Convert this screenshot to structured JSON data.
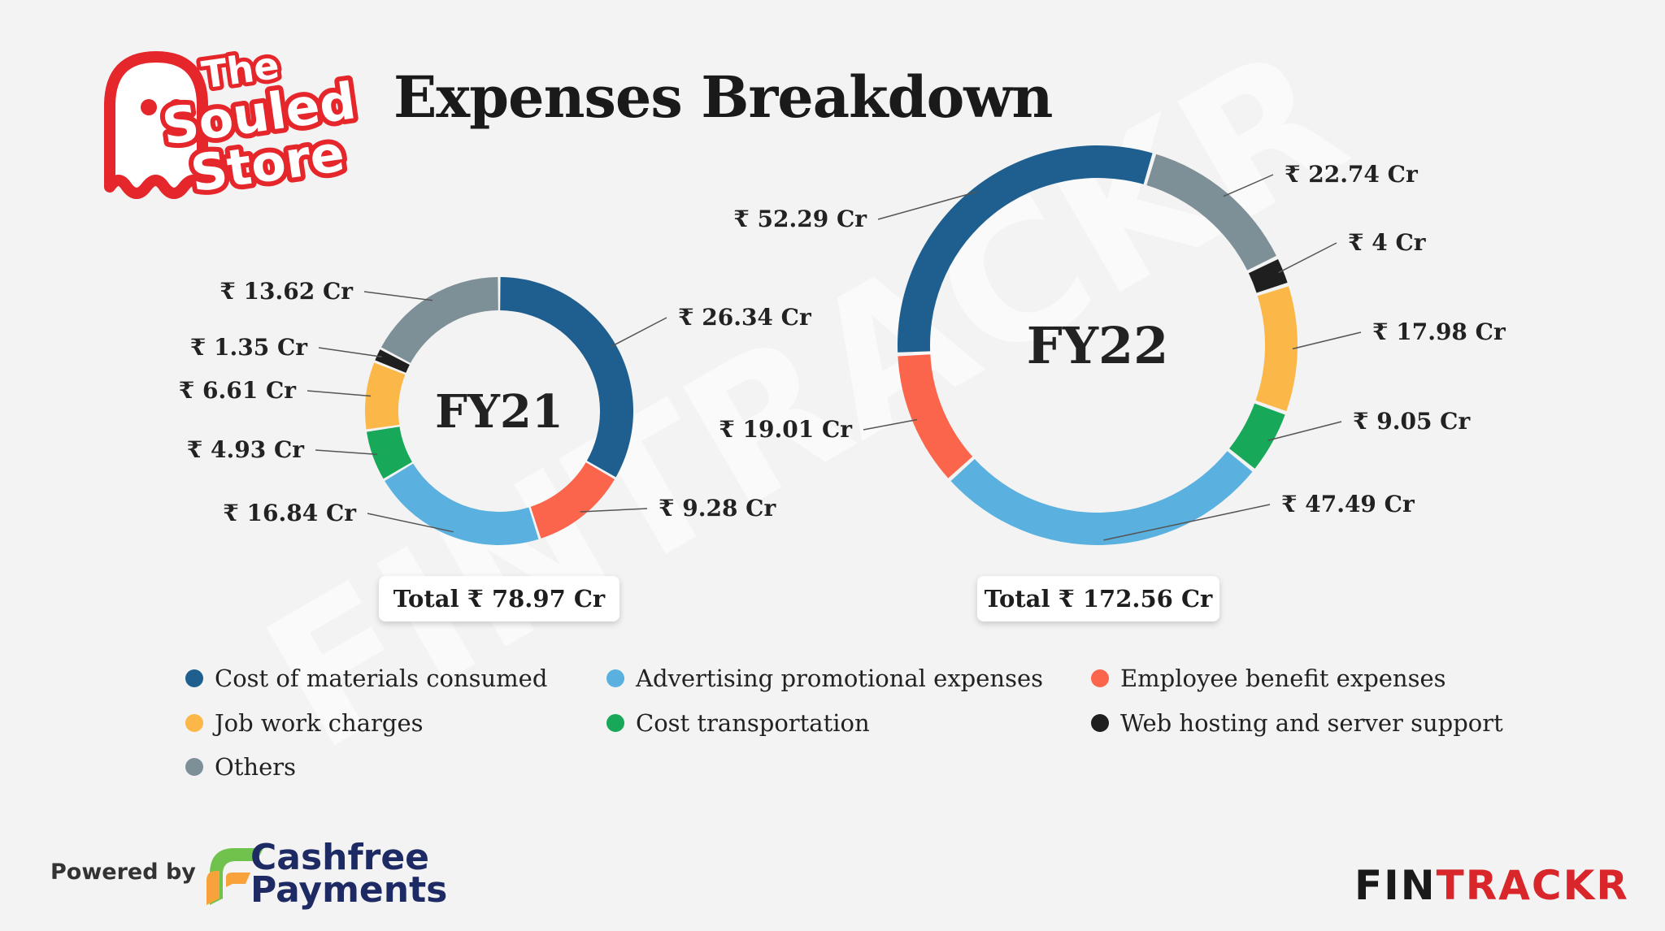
{
  "page": {
    "title": "Expenses Breakdown"
  },
  "brand": {
    "logo_line1": "The",
    "logo_line2": "Souled",
    "logo_line3": "Store",
    "logo_color": "#e5262b"
  },
  "watermark": "FINTRACKR",
  "legend": [
    {
      "label": "Cost of materials consumed",
      "color": "#1f5f8f"
    },
    {
      "label": "Advertising promotional expenses",
      "color": "#5ab0de"
    },
    {
      "label": "Employee benefit expenses",
      "color": "#fb654c"
    },
    {
      "label": "Job work charges",
      "color": "#fbb848"
    },
    {
      "label": "Cost transportation",
      "color": "#17a85a"
    },
    {
      "label": "Web hosting and server support",
      "color": "#1f1f1f"
    },
    {
      "label": "Others",
      "color": "#7e9097"
    }
  ],
  "chart_data": [
    {
      "type": "pie",
      "title": "FY21",
      "total_label": "Total ₹ 78.97 Cr",
      "unit": "₹ Cr",
      "slices": [
        {
          "name": "Cost of materials consumed",
          "value": 26.34,
          "label": "₹ 26.34 Cr"
        },
        {
          "name": "Employee benefit expenses",
          "value": 9.28,
          "label": "₹ 9.28 Cr"
        },
        {
          "name": "Advertising promotional expenses",
          "value": 16.84,
          "label": "₹ 16.84 Cr"
        },
        {
          "name": "Cost transportation",
          "value": 4.93,
          "label": "₹ 4.93 Cr"
        },
        {
          "name": "Job work charges",
          "value": 6.61,
          "label": "₹ 6.61 Cr"
        },
        {
          "name": "Web hosting and server support",
          "value": 1.35,
          "label": "₹ 1.35 Cr"
        },
        {
          "name": "Others",
          "value": 13.62,
          "label": "₹ 13.62 Cr"
        }
      ]
    },
    {
      "type": "pie",
      "title": "FY22",
      "total_label": "Total ₹ 172.56 Cr",
      "unit": "₹ Cr",
      "slices": [
        {
          "name": "Others",
          "value": 22.74,
          "label": "₹ 22.74 Cr"
        },
        {
          "name": "Web hosting and server support",
          "value": 4,
          "label": "₹ 4 Cr"
        },
        {
          "name": "Job work charges",
          "value": 17.98,
          "label": "₹ 17.98 Cr"
        },
        {
          "name": "Cost transportation",
          "value": 9.05,
          "label": "₹ 9.05 Cr"
        },
        {
          "name": "Advertising promotional expenses",
          "value": 47.49,
          "label": "₹ 47.49 Cr"
        },
        {
          "name": "Employee benefit expenses",
          "value": 19.01,
          "label": "₹ 19.01 Cr"
        },
        {
          "name": "Cost of materials consumed",
          "value": 52.29,
          "label": "₹ 52.29 Cr"
        }
      ]
    }
  ],
  "footer": {
    "powered_by": "Powered by",
    "partner_line1": "Cashfree",
    "partner_line2": "Payments",
    "brand_part1": "FIN",
    "brand_part2": "TRACKR"
  }
}
